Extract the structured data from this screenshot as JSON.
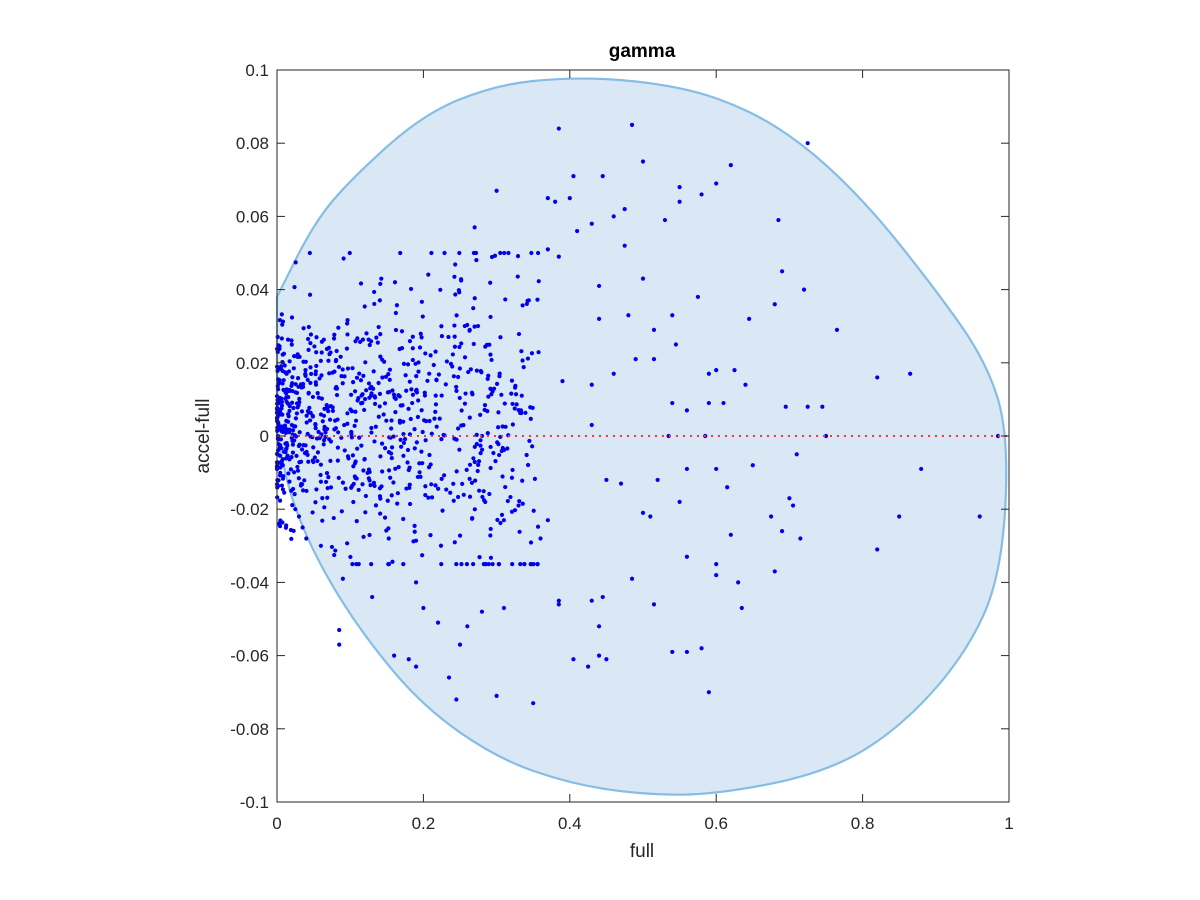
{
  "chart_data": {
    "type": "scatter",
    "title": "gamma",
    "xlabel": "full",
    "ylabel": "accel-full",
    "xlim": [
      0,
      1
    ],
    "ylim": [
      -0.1,
      0.1
    ],
    "x_ticks": [
      0,
      0.2,
      0.4,
      0.6,
      0.8,
      1
    ],
    "x_tick_labels": [
      "0",
      "0.2",
      "0.4",
      "0.6",
      "0.8",
      "1"
    ],
    "y_ticks": [
      -0.1,
      -0.08,
      -0.06,
      -0.04,
      -0.02,
      0,
      0.02,
      0.04,
      0.06,
      0.08,
      0.1
    ],
    "y_tick_labels": [
      "-0.1",
      "-0.08",
      "-0.06",
      "-0.04",
      "-0.02",
      "0",
      "0.02",
      "0.04",
      "0.06",
      "0.08",
      "0.1"
    ],
    "grid": false,
    "colors": {
      "points": "#0000ee",
      "region_fill": "#d9e8f4",
      "region_stroke": "#86bde4",
      "reference_line": "#ff3333",
      "axes": "#262626"
    },
    "region": {
      "description_points": [
        [
          0,
          0.038
        ],
        [
          0.05,
          0.058
        ],
        [
          0.1,
          0.07
        ],
        [
          0.2,
          0.088
        ],
        [
          0.3,
          0.096
        ],
        [
          0.4,
          0.098
        ],
        [
          0.5,
          0.097
        ],
        [
          0.6,
          0.093
        ],
        [
          0.7,
          0.083
        ],
        [
          0.8,
          0.065
        ],
        [
          0.9,
          0.04
        ],
        [
          0.97,
          0.02
        ],
        [
          1.0,
          0.0
        ],
        [
          0.99,
          -0.038
        ],
        [
          0.94,
          -0.06
        ],
        [
          0.85,
          -0.08
        ],
        [
          0.75,
          -0.092
        ],
        [
          0.6,
          -0.098
        ],
        [
          0.5,
          -0.098
        ],
        [
          0.4,
          -0.095
        ],
        [
          0.3,
          -0.088
        ],
        [
          0.2,
          -0.074
        ],
        [
          0.12,
          -0.055
        ],
        [
          0.06,
          -0.036
        ],
        [
          0.02,
          -0.018
        ],
        [
          0,
          0.0
        ]
      ]
    },
    "reference_line": {
      "y": 0,
      "x": [
        0,
        1
      ]
    },
    "highlighted_points": [
      [
        0.385,
        0.084
      ],
      [
        0.485,
        0.085
      ],
      [
        0.725,
        0.08
      ],
      [
        0.5,
        0.075
      ],
      [
        0.62,
        0.074
      ],
      [
        0.405,
        0.071
      ],
      [
        0.445,
        0.071
      ],
      [
        0.6,
        0.069
      ],
      [
        0.55,
        0.068
      ],
      [
        0.3,
        0.067
      ],
      [
        0.58,
        0.066
      ],
      [
        0.37,
        0.065
      ],
      [
        0.4,
        0.065
      ],
      [
        0.38,
        0.064
      ],
      [
        0.55,
        0.064
      ],
      [
        0.475,
        0.062
      ],
      [
        0.685,
        0.059
      ],
      [
        0.53,
        0.059
      ],
      [
        0.46,
        0.06
      ],
      [
        0.43,
        0.058
      ],
      [
        0.27,
        0.057
      ],
      [
        0.41,
        0.056
      ],
      [
        0.475,
        0.052
      ],
      [
        0.37,
        0.051
      ],
      [
        0.385,
        0.049
      ],
      [
        0.69,
        0.045
      ],
      [
        0.5,
        0.043
      ],
      [
        0.72,
        0.04
      ],
      [
        0.575,
        0.038
      ],
      [
        0.44,
        0.041
      ],
      [
        0.68,
        0.036
      ],
      [
        0.765,
        0.029
      ],
      [
        0.515,
        0.029
      ],
      [
        0.48,
        0.033
      ],
      [
        0.44,
        0.032
      ],
      [
        0.54,
        0.033
      ],
      [
        0.545,
        0.025
      ],
      [
        0.645,
        0.032
      ],
      [
        0.59,
        0.017
      ],
      [
        0.82,
        0.016
      ],
      [
        0.865,
        0.017
      ],
      [
        0.625,
        0.018
      ],
      [
        0.6,
        0.018
      ],
      [
        0.49,
        0.021
      ],
      [
        0.515,
        0.021
      ],
      [
        0.46,
        0.017
      ],
      [
        0.43,
        0.014
      ],
      [
        0.39,
        0.015
      ],
      [
        0.64,
        0.014
      ],
      [
        0.56,
        0.007
      ],
      [
        0.54,
        0.009
      ],
      [
        0.61,
        0.009
      ],
      [
        0.59,
        0.009
      ],
      [
        0.695,
        0.008
      ],
      [
        0.725,
        0.008
      ],
      [
        0.745,
        0.008
      ],
      [
        0.43,
        0.003
      ],
      [
        0.535,
        0.0
      ],
      [
        0.585,
        0.0
      ],
      [
        0.75,
        0.0
      ],
      [
        0.985,
        0.0
      ],
      [
        0.6,
        -0.009
      ],
      [
        0.88,
        -0.009
      ],
      [
        0.65,
        -0.008
      ],
      [
        0.71,
        -0.005
      ],
      [
        0.47,
        -0.013
      ],
      [
        0.45,
        -0.012
      ],
      [
        0.52,
        -0.012
      ],
      [
        0.56,
        -0.009
      ],
      [
        0.615,
        -0.014
      ],
      [
        0.7,
        -0.017
      ],
      [
        0.705,
        -0.019
      ],
      [
        0.675,
        -0.022
      ],
      [
        0.55,
        -0.018
      ],
      [
        0.85,
        -0.022
      ],
      [
        0.96,
        -0.022
      ],
      [
        0.51,
        -0.022
      ],
      [
        0.715,
        -0.028
      ],
      [
        0.62,
        -0.027
      ],
      [
        0.69,
        -0.026
      ],
      [
        0.82,
        -0.031
      ],
      [
        0.56,
        -0.033
      ],
      [
        0.6,
        -0.035
      ],
      [
        0.6,
        -0.038
      ],
      [
        0.68,
        -0.037
      ],
      [
        0.63,
        -0.04
      ],
      [
        0.485,
        -0.039
      ],
      [
        0.635,
        -0.047
      ],
      [
        0.515,
        -0.046
      ],
      [
        0.445,
        -0.044
      ],
      [
        0.385,
        -0.045
      ],
      [
        0.385,
        -0.046
      ],
      [
        0.44,
        -0.052
      ],
      [
        0.43,
        -0.045
      ],
      [
        0.54,
        -0.059
      ],
      [
        0.56,
        -0.059
      ],
      [
        0.58,
        -0.058
      ],
      [
        0.405,
        -0.061
      ],
      [
        0.425,
        -0.063
      ],
      [
        0.44,
        -0.06
      ],
      [
        0.45,
        -0.061
      ],
      [
        0.59,
        -0.07
      ],
      [
        0.3,
        -0.071
      ],
      [
        0.35,
        -0.073
      ],
      [
        0.245,
        -0.072
      ],
      [
        0.235,
        -0.066
      ],
      [
        0.085,
        -0.053
      ],
      [
        0.085,
        -0.057
      ],
      [
        0.16,
        -0.06
      ],
      [
        0.18,
        -0.061
      ],
      [
        0.19,
        -0.063
      ],
      [
        0.5,
        -0.021
      ],
      [
        0.33,
        -0.019
      ],
      [
        0.37,
        -0.023
      ],
      [
        0.36,
        -0.028
      ],
      [
        0.31,
        -0.023
      ],
      [
        0.31,
        -0.047
      ],
      [
        0.28,
        -0.048
      ],
      [
        0.26,
        -0.052
      ],
      [
        0.25,
        -0.057
      ],
      [
        0.22,
        -0.051
      ],
      [
        0.2,
        -0.047
      ],
      [
        0.19,
        -0.04
      ],
      [
        0.13,
        -0.044
      ],
      [
        0.09,
        -0.039
      ],
      [
        0.06,
        -0.03
      ],
      [
        0.04,
        -0.028
      ],
      [
        0.035,
        -0.025
      ],
      [
        0.03,
        -0.022
      ],
      [
        0.025,
        -0.02
      ]
    ],
    "cluster": {
      "x_range": [
        0,
        0.36
      ],
      "y_range": [
        -0.035,
        0.05
      ],
      "count": 900,
      "seed": 7
    }
  }
}
